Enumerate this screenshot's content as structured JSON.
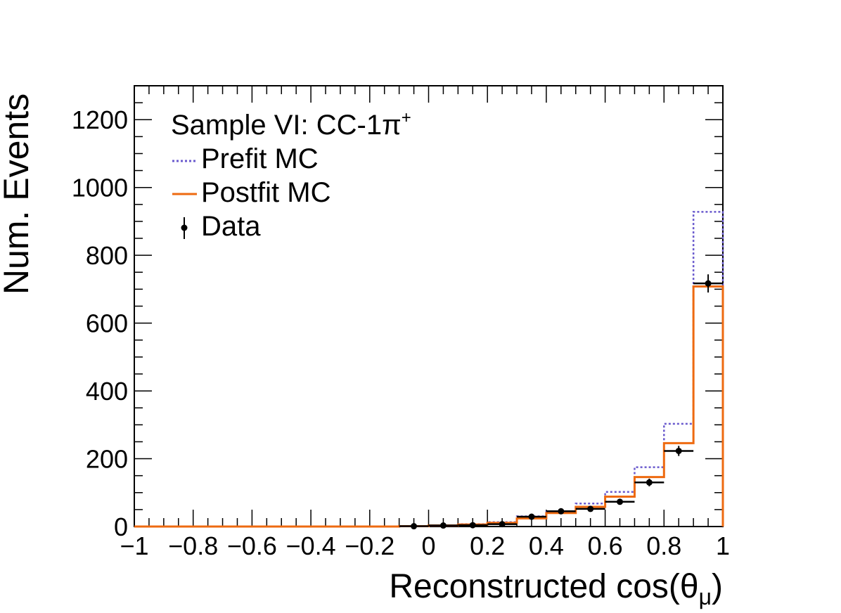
{
  "chart_data": {
    "type": "histogram",
    "xlabel": "Reconstructed cos(",
    "xlabel_theta": "θ",
    "xlabel_sub": "μ",
    "xlabel_close": ")",
    "ylabel": "Num. Events",
    "xlim": [
      -1,
      1
    ],
    "ylim": [
      0,
      1300
    ],
    "x_ticks": [
      -1,
      -0.8,
      -0.6,
      -0.4,
      -0.2,
      0,
      0.2,
      0.4,
      0.6,
      0.8,
      1
    ],
    "x_tick_labels": [
      "−1",
      "−0.8",
      "−0.6",
      "−0.4",
      "−0.2",
      "0",
      "0.2",
      "0.4",
      "0.6",
      "0.8",
      "1"
    ],
    "y_ticks": [
      0,
      200,
      400,
      600,
      800,
      1000,
      1200
    ],
    "y_tick_labels": [
      "0",
      "200",
      "400",
      "600",
      "800",
      "1000",
      "1200"
    ],
    "bin_edges": [
      -1,
      -0.1,
      0,
      0.1,
      0.2,
      0.3,
      0.4,
      0.5,
      0.6,
      0.7,
      0.8,
      0.9,
      1.0
    ],
    "series": [
      {
        "name": "Prefit MC",
        "style": "dotted",
        "color": "#6a5acd",
        "values": [
          0,
          1,
          3,
          7,
          13,
          30,
          44,
          68,
          102,
          175,
          303,
          928
        ]
      },
      {
        "name": "Postfit MC",
        "style": "solid",
        "color": "#ee6a10",
        "values": [
          0,
          1,
          3,
          6,
          11,
          24,
          40,
          58,
          88,
          146,
          246,
          708
        ]
      },
      {
        "name": "Data",
        "style": "points",
        "color": "#000000",
        "x": [
          -0.05,
          0.05,
          0.15,
          0.25,
          0.35,
          0.45,
          0.55,
          0.65,
          0.75,
          0.85,
          0.95
        ],
        "values": [
          1,
          3,
          4,
          7,
          29,
          45,
          52,
          73,
          130,
          223,
          717
        ],
        "errors": [
          1,
          1.7,
          2,
          2.6,
          5.4,
          6.7,
          7.2,
          8.5,
          11.4,
          14.9,
          26.8
        ]
      }
    ],
    "legend": {
      "position": "top-left",
      "title_main": "Sample VI: CC-1",
      "title_pi": "π",
      "title_sup": "+",
      "entries": [
        "Prefit MC",
        "Postfit MC",
        "Data"
      ]
    }
  }
}
